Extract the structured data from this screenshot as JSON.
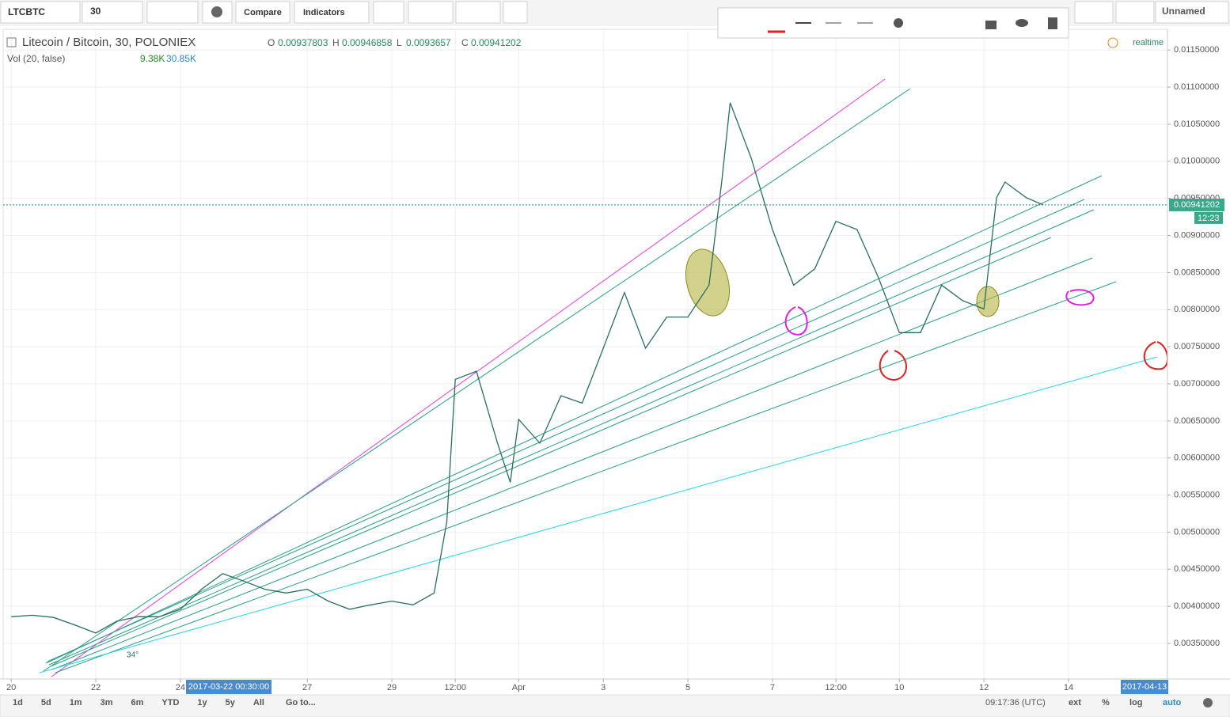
{
  "toolbar": {
    "symbol": "LTCBTC",
    "interval": "30",
    "compare": "Compare",
    "indicators": "Indicators",
    "layout": "Unnamed"
  },
  "legend": {
    "title": "Litecoin / Bitcoin, 30, POLONIEX",
    "o_label": "O",
    "o": 0.00937803,
    "h_label": "H",
    "h": 0.00946858,
    "l_label": "L",
    "l": 0.0093657,
    "c_label": "C",
    "c": 0.00941202,
    "volume_title": "Vol (20, false)",
    "volume_1": "9.38K",
    "volume_2": "30.85K",
    "realtime": "realtime"
  },
  "chart_data": {
    "type": "line",
    "color": "#2a6e5e",
    "grid": true,
    "x": [
      0,
      0.5,
      1,
      1.5,
      2,
      2.5,
      3,
      3.5,
      4,
      4.5,
      5,
      5.5,
      6,
      6.5,
      7,
      7.5,
      8,
      8.5,
      9,
      9.5,
      10,
      10.3,
      10.5,
      11,
      11.5,
      11.8,
      12,
      12.5,
      13,
      13.5,
      14,
      14.5,
      15,
      15.5,
      16,
      16.5,
      16.8,
      17,
      17.5,
      18,
      18.5,
      19,
      19.5,
      20,
      20.5,
      21,
      21.5,
      22,
      22.5,
      23,
      23.3,
      23.5,
      24,
      24.4
    ],
    "values": [
      0.00386,
      0.00388,
      0.00385,
      0.00375,
      0.00364,
      0.0038,
      0.00386,
      0.00386,
      0.00396,
      0.00423,
      0.00444,
      0.00434,
      0.00423,
      0.00418,
      0.00423,
      0.00407,
      0.00396,
      0.00402,
      0.00407,
      0.00402,
      0.00418,
      0.00514,
      0.00706,
      0.00717,
      0.0062,
      0.00567,
      0.00652,
      0.0062,
      0.00684,
      0.00674,
      0.00748,
      0.00823,
      0.00748,
      0.0079,
      0.0079,
      0.00833,
      0.00972,
      0.01079,
      0.01004,
      0.00908,
      0.00833,
      0.00855,
      0.00919,
      0.00908,
      0.00844,
      0.00769,
      0.00769,
      0.00833,
      0.00812,
      0.00801,
      0.00951,
      0.00972,
      0.00951,
      0.00941202
    ],
    "xlim": [
      -0.19,
      27.34
    ],
    "xticks": [
      {
        "value": 0,
        "label": "20"
      },
      {
        "value": 2,
        "label": "22"
      },
      {
        "value": 4,
        "label": "24"
      },
      {
        "value": 7,
        "label": "27"
      },
      {
        "value": 9,
        "label": "29"
      },
      {
        "value": 10.5,
        "label": "12:00"
      },
      {
        "value": 12,
        "label": "Apr"
      },
      {
        "value": 14,
        "label": "3"
      },
      {
        "value": 16,
        "label": "5"
      },
      {
        "value": 18,
        "label": "7"
      },
      {
        "value": 19.5,
        "label": "12:00"
      },
      {
        "value": 21,
        "label": "10"
      },
      {
        "value": 23,
        "label": "12"
      },
      {
        "value": 25,
        "label": "14"
      }
    ],
    "ylim": [
      0.00302,
      0.01178
    ],
    "yticks": [
      {
        "value": 0.0115,
        "label": "0.01150000"
      },
      {
        "value": 0.011,
        "label": "0.01100000"
      },
      {
        "value": 0.0105,
        "label": "0.01050000"
      },
      {
        "value": 0.01,
        "label": "0.01000000"
      },
      {
        "value": 0.0095,
        "label": "0.00950000"
      },
      {
        "value": 0.009,
        "label": "0.00900000"
      },
      {
        "value": 0.0085,
        "label": "0.00850000"
      },
      {
        "value": 0.008,
        "label": "0.00800000"
      },
      {
        "value": 0.0075,
        "label": "0.00750000"
      },
      {
        "value": 0.007,
        "label": "0.00700000"
      },
      {
        "value": 0.0065,
        "label": "0.00650000"
      },
      {
        "value": 0.006,
        "label": "0.00600000"
      },
      {
        "value": 0.0055,
        "label": "0.00550000"
      },
      {
        "value": 0.005,
        "label": "0.00500000"
      },
      {
        "value": 0.0045,
        "label": "0.00450000"
      },
      {
        "value": 0.004,
        "label": "0.00400000"
      },
      {
        "value": 0.0035,
        "label": "0.00350000"
      }
    ],
    "last_price": 0.00941202,
    "countdown": "12:23",
    "crosshair_x_label": "2017-03-22 00:30:00",
    "crosshair_x2_label": "2017-04-13",
    "angle_label": "34°"
  },
  "bottom_bar": {
    "ranges": [
      "1d",
      "5d",
      "1m",
      "3m",
      "6m",
      "YTD",
      "1y",
      "5y",
      "All"
    ],
    "goto": "Go to...",
    "clock": "09:17:36 (UTC)",
    "ext": "ext",
    "percent": "%",
    "log": "log",
    "auto": "auto"
  }
}
